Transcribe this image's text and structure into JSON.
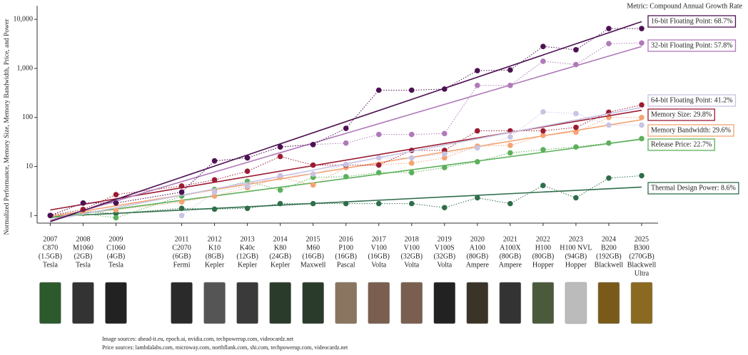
{
  "chart_data": {
    "type": "line",
    "metric_note": "Metric: Compound Annual Growth Rate",
    "y_label": "Normalized Performance, Memory Size, Memory Bandwidth, Price, and Power",
    "log_scale": true,
    "x": [
      2007,
      2008,
      2009,
      2011,
      2012,
      2013,
      2014,
      2015,
      2016,
      2017,
      2018,
      2019,
      2020,
      2021,
      2022,
      2023,
      2024,
      2025
    ],
    "xlim": [
      2006.6,
      2025.5
    ],
    "xticks": [
      2007,
      2008,
      2009,
      2011,
      2012,
      2013,
      2014,
      2015,
      2016,
      2017,
      2018,
      2019,
      2020,
      2021,
      2022,
      2023,
      2024,
      2025
    ],
    "gpu_labels": [
      [
        "C870",
        "(1.5GB)",
        "Tesla"
      ],
      [
        "M1060",
        "(2GB)",
        "Tesla"
      ],
      [
        "C1060",
        "(4GB)",
        "Tesla"
      ],
      [
        "C2070",
        "(6GB)",
        "Fermi"
      ],
      [
        "K10",
        "(8GB)",
        "Kepler"
      ],
      [
        "K40c",
        "(12GB)",
        "Kepler"
      ],
      [
        "K80",
        "(24GB)",
        "Kepler"
      ],
      [
        "M60",
        "(16GB)",
        "Maxwell"
      ],
      [
        "P100",
        "(16GB)",
        "Pascal"
      ],
      [
        "V100",
        "(16GB)",
        "Volta"
      ],
      [
        "V100",
        "(32GB)",
        "Volta"
      ],
      [
        "V100S",
        "(32GB)",
        "Volta"
      ],
      [
        "A100",
        "(80GB)",
        "Ampere"
      ],
      [
        "A100X",
        "(80GB)",
        "Ampere"
      ],
      [
        "H100",
        "(80GB)",
        "Hopper"
      ],
      [
        "H100 NVL",
        "(94GB)",
        "Hopper"
      ],
      [
        "B200",
        "(192GB)",
        "Blackwell"
      ],
      [
        "B300",
        "(270GB)",
        "Blackwell",
        "Ultra"
      ]
    ],
    "ylim": [
      0.7,
      19000
    ],
    "yticks": [
      1,
      10,
      100,
      {
        "value": 1000,
        "label": "1,000"
      },
      {
        "value": 10000,
        "label": "10,000"
      }
    ],
    "series": [
      {
        "name": "Thermal Design Power: 8.6%",
        "color": "#2f6e4a",
        "values": [
          1,
          1.2,
          1.1,
          1.4,
          1.35,
          1.4,
          1.75,
          1.75,
          1.75,
          1.75,
          1.75,
          1.45,
          2.3,
          1.75,
          4.1,
          2.3,
          5.8,
          6.5
        ],
        "trend": [
          0.95,
          3.8
        ]
      },
      {
        "name": "Release Price: 22.7%",
        "color": "#5cb05a",
        "values": [
          1,
          1.1,
          0.9,
          2.5,
          3.4,
          5,
          3.3,
          6,
          6.2,
          7.5,
          7.5,
          9.5,
          12.5,
          19,
          22,
          25,
          30,
          37
        ],
        "trend": [
          0.9,
          36
        ]
      },
      {
        "name": "Memory Bandwidth: 29.6%",
        "color": "#f4a372",
        "values": [
          1,
          1.2,
          1.3,
          1.9,
          2.5,
          3.7,
          6,
          4.2,
          9.5,
          11,
          11.7,
          15,
          26,
          27,
          43,
          50,
          100,
          100
        ],
        "trend": [
          0.95,
          90
        ]
      },
      {
        "name": "Memory Size: 29.8%",
        "color": "#9b1b32",
        "values": [
          1,
          1.33,
          2.67,
          4,
          5.33,
          8,
          16,
          10.67,
          10.67,
          10.67,
          21.3,
          21.3,
          53.3,
          53.3,
          53.3,
          62.7,
          128,
          180
        ],
        "trend": [
          1.3,
          140
        ]
      },
      {
        "name": "64-bit Floating Point: 41.2%",
        "color": "#c9c3e3",
        "values": [
          null,
          null,
          null,
          1,
          3,
          4,
          6.5,
          7,
          11,
          15,
          15,
          18,
          24,
          40,
          130,
          120,
          70,
          70
        ],
        "trend": [
          0.8,
          160
        ]
      },
      {
        "name": "32-bit Floating Point: 57.8%",
        "color": "#b07ab9",
        "values": [
          1,
          1.8,
          1.8,
          3,
          13,
          15,
          25,
          28,
          30,
          45,
          45,
          47,
          450,
          450,
          1400,
          1200,
          3200,
          3300
        ],
        "trend": [
          0.8,
          2800
        ]
      },
      {
        "name": "16-bit Floating Point: 68.7%",
        "color": "#4d1152",
        "values": [
          1,
          1.8,
          1.8,
          3,
          13,
          15,
          25,
          28,
          60,
          360,
          360,
          380,
          900,
          930,
          2800,
          2400,
          6500,
          6500
        ],
        "trend": [
          0.75,
          9000
        ]
      }
    ],
    "sources": [
      "Image sources: ahead-it.eu, epoch.ai, nvidia.com, techpowerup.com, videocardz.net",
      "Price sources: lambdalabs.com, microway.com, northflank.com, shi.com, techpowerup.com, videocardz.net"
    ]
  }
}
